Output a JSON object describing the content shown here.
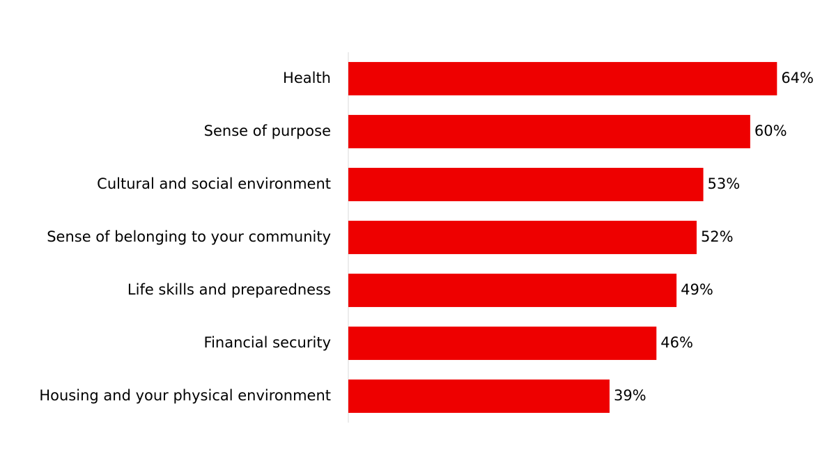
{
  "chart_data": {
    "type": "bar",
    "orientation": "horizontal",
    "categories": [
      "Health",
      "Sense of purpose",
      "Cultural and social environment",
      "Sense of belonging to your community",
      "Life skills and preparedness",
      "Financial security",
      "Housing and your physical environment"
    ],
    "values": [
      64,
      60,
      53,
      52,
      49,
      46,
      39
    ],
    "value_labels": [
      "64%",
      "60%",
      "53%",
      "52%",
      "49%",
      "46%",
      "39%"
    ],
    "color": "#ee0000",
    "xlim": [
      0,
      70
    ]
  }
}
